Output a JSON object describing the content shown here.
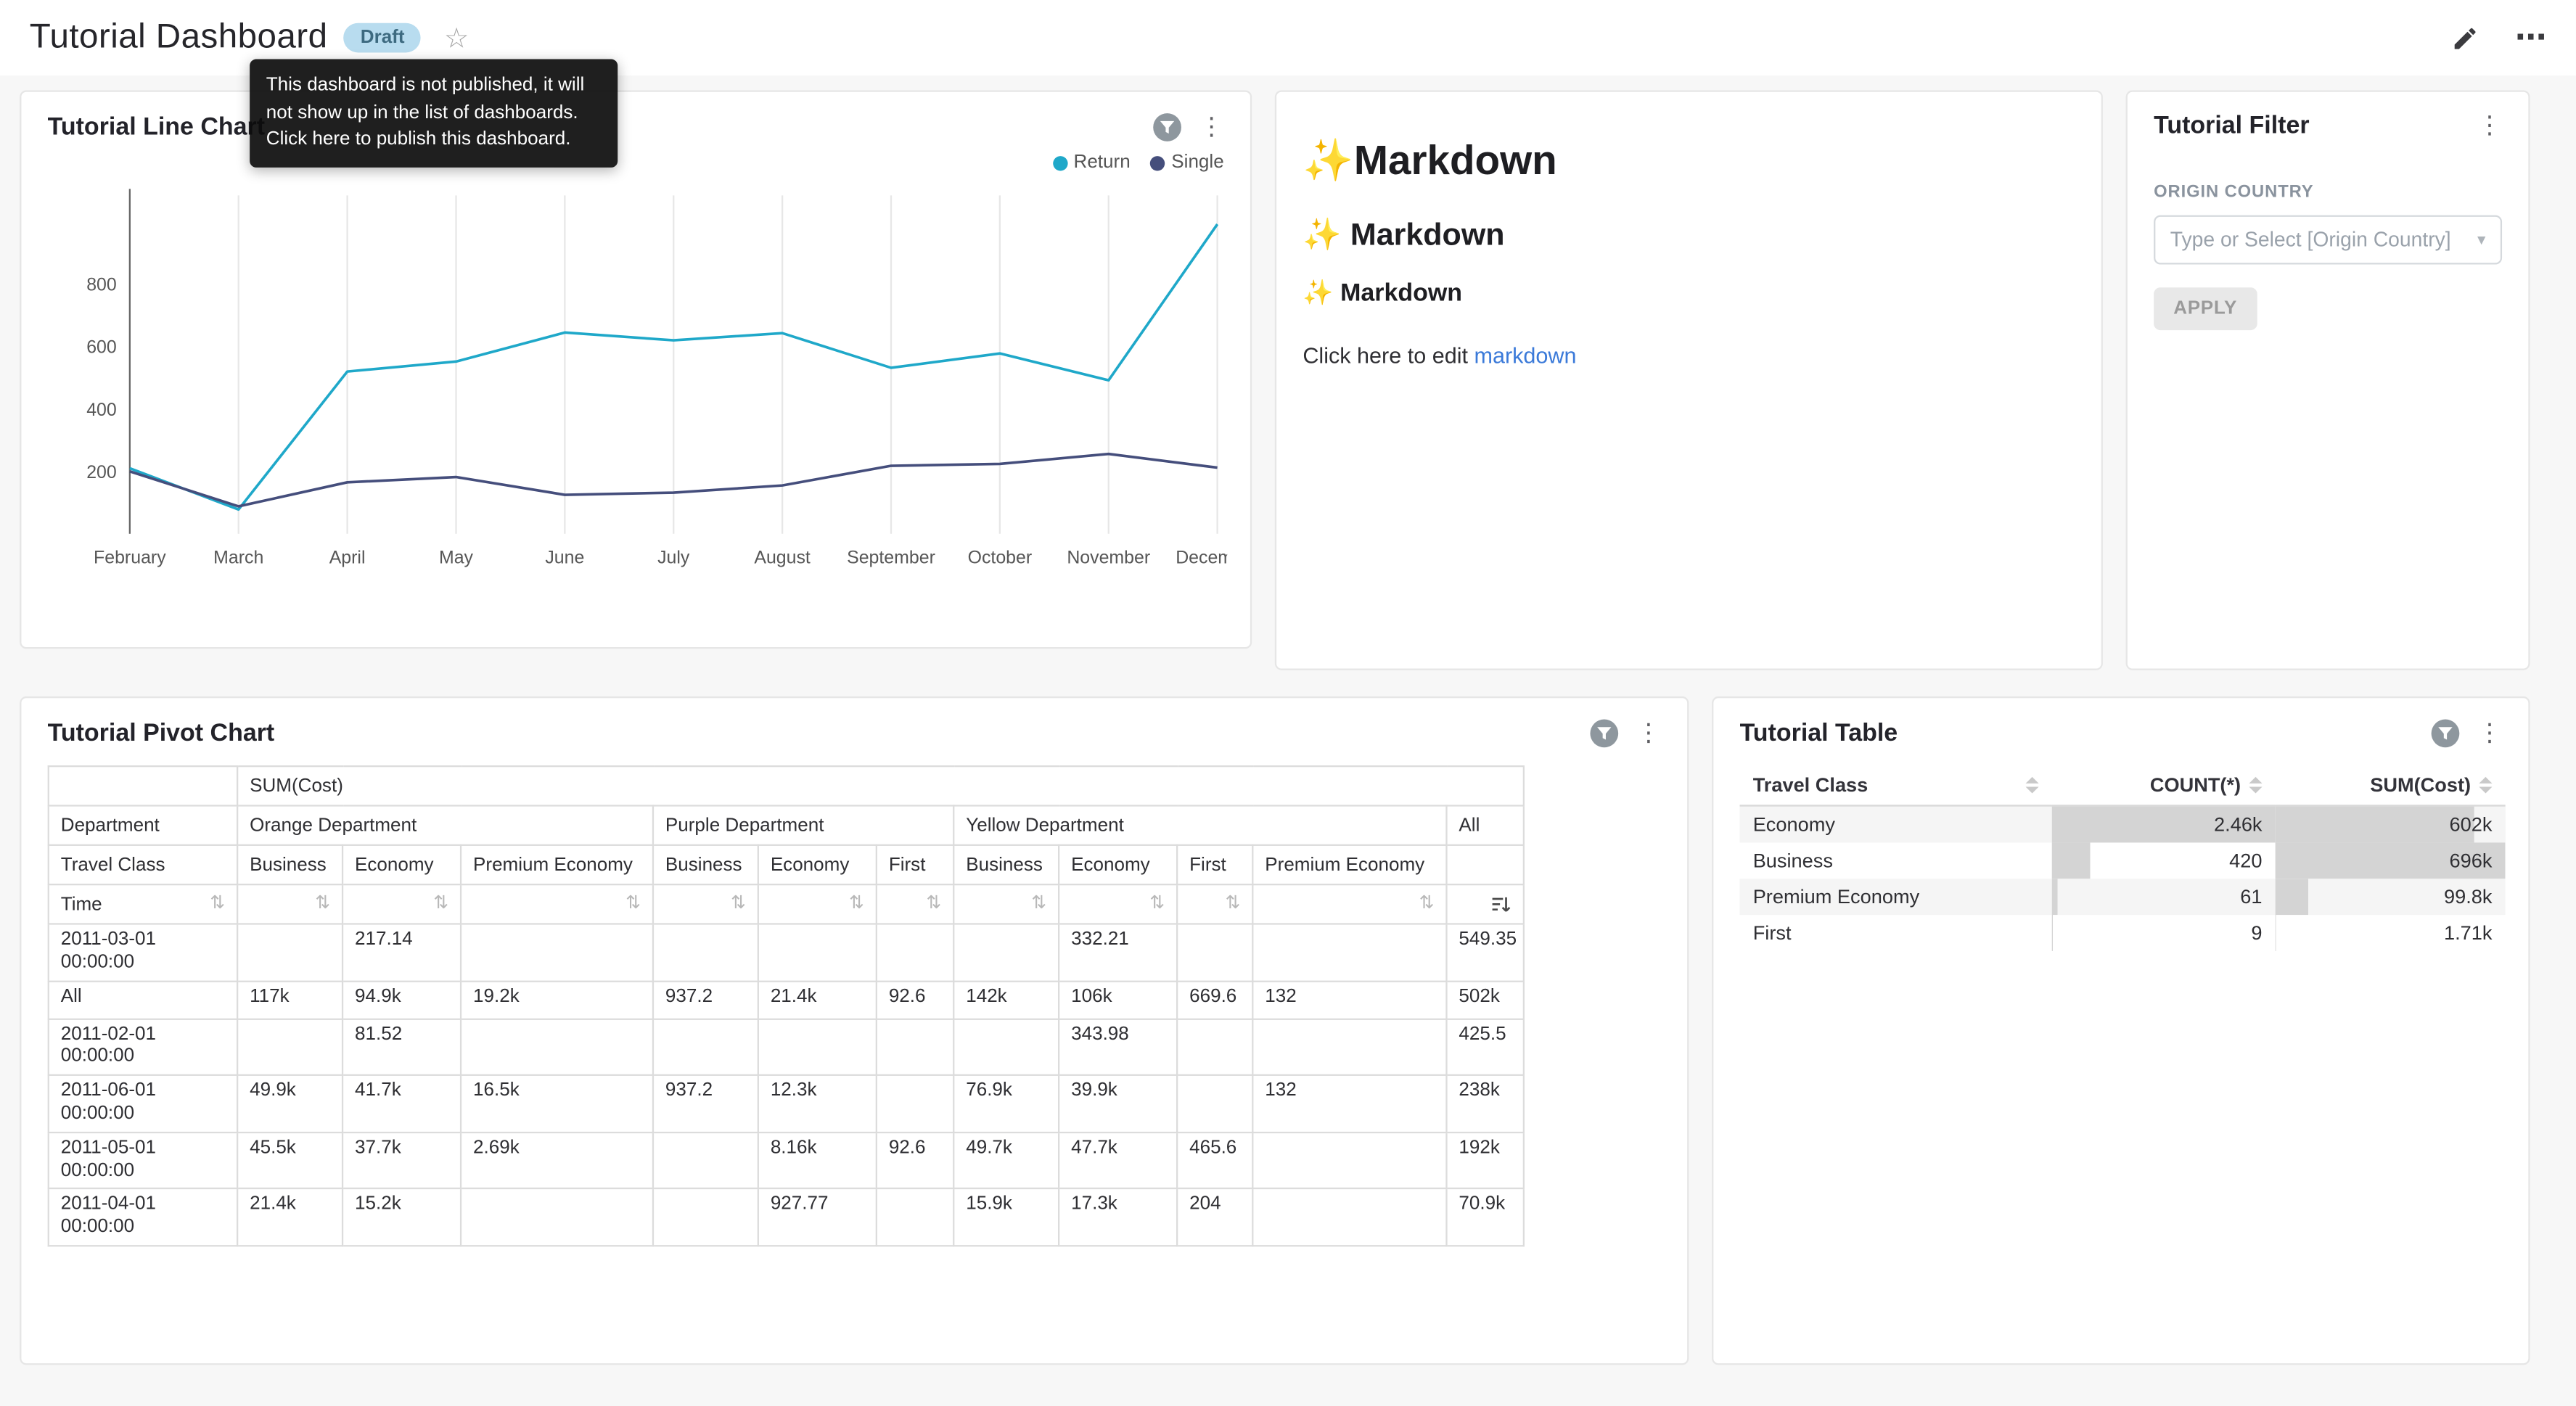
{
  "header": {
    "title": "Tutorial Dashboard",
    "badge": "Draft",
    "tooltip": "This dashboard is not published, it will not show up in the list of dashboards. Click here to publish this dashboard."
  },
  "icons": {
    "star": "☆",
    "kebab": "⋮",
    "ellipsis": "⋯",
    "sort_both": "⇅",
    "caret_down": "▾"
  },
  "colors": {
    "page_bg": "#f7f7f7",
    "series_return": "#1FA8C9",
    "series_single": "#454E7C",
    "badge_bg": "#b8dcef",
    "badge_text": "#3d6a80",
    "link": "#3b7ad9",
    "table_bar": "#d4d4d4"
  },
  "markdown": {
    "h1": "✨Markdown",
    "h2": "✨ Markdown",
    "h3": "✨ Markdown",
    "edit_prefix": "Click here to edit ",
    "edit_link": "markdown"
  },
  "filter": {
    "title": "Tutorial Filter",
    "field_label": "ORIGIN COUNTRY",
    "placeholder": "Type or Select [Origin Country]",
    "apply_label": "APPLY"
  },
  "chart_data": [
    {
      "type": "line",
      "title": "Tutorial Line Chart",
      "x": [
        "February",
        "March",
        "April",
        "May",
        "June",
        "July",
        "August",
        "September",
        "October",
        "November",
        "December"
      ],
      "series": [
        {
          "name": "Return",
          "color": "#1FA8C9",
          "values": [
            210,
            78,
            520,
            552,
            645,
            620,
            643,
            532,
            578,
            492,
            992
          ]
        },
        {
          "name": "Single",
          "color": "#454E7C",
          "values": [
            200,
            88,
            165,
            182,
            125,
            132,
            155,
            218,
            224,
            256,
            212
          ]
        }
      ],
      "ylim": [
        0,
        1000
      ],
      "yticks": [
        200,
        400,
        600,
        800
      ],
      "legend_position": "top-right",
      "grid": "vertical"
    },
    {
      "type": "table",
      "title": "Tutorial Pivot Chart",
      "metric_header": "SUM(Cost)",
      "row_dim": "Department",
      "col_dim": "Travel Class",
      "time_label": "Time",
      "sorted_column_index": 10,
      "groups": [
        {
          "name": "Orange Department",
          "cols": [
            "Business",
            "Economy",
            "Premium Economy"
          ]
        },
        {
          "name": "Purple Department",
          "cols": [
            "Business",
            "Economy",
            "First"
          ]
        },
        {
          "name": "Yellow Department",
          "cols": [
            "Business",
            "Economy",
            "First",
            "Premium Economy"
          ]
        },
        {
          "name": "All",
          "cols": [
            ""
          ]
        }
      ],
      "rows": [
        {
          "label": "2011-03-01 00:00:00",
          "values": [
            "",
            "217.14",
            "",
            "",
            "",
            "",
            "",
            "332.21",
            "",
            "",
            "549.35"
          ]
        },
        {
          "label": "All",
          "values": [
            "117k",
            "94.9k",
            "19.2k",
            "937.2",
            "21.4k",
            "92.6",
            "142k",
            "106k",
            "669.6",
            "132",
            "502k"
          ]
        },
        {
          "label": "2011-02-01 00:00:00",
          "values": [
            "",
            "81.52",
            "",
            "",
            "",
            "",
            "",
            "343.98",
            "",
            "",
            "425.5"
          ]
        },
        {
          "label": "2011-06-01 00:00:00",
          "values": [
            "49.9k",
            "41.7k",
            "16.5k",
            "937.2",
            "12.3k",
            "",
            "76.9k",
            "39.9k",
            "",
            "132",
            "238k"
          ]
        },
        {
          "label": "2011-05-01 00:00:00",
          "values": [
            "45.5k",
            "37.7k",
            "2.69k",
            "",
            "8.16k",
            "92.6",
            "49.7k",
            "47.7k",
            "465.6",
            "",
            "192k"
          ]
        },
        {
          "label": "2011-04-01 00:00:00",
          "values": [
            "21.4k",
            "15.2k",
            "",
            "",
            "927.77",
            "",
            "15.9k",
            "17.3k",
            "204",
            "",
            "70.9k"
          ]
        }
      ]
    },
    {
      "type": "table",
      "title": "Tutorial Table",
      "columns": [
        "Travel Class",
        "COUNT(*)",
        "SUM(Cost)"
      ],
      "rows": [
        {
          "cells": [
            "Economy",
            "2.46k",
            "602k"
          ],
          "count_frac": 1.0,
          "sum_frac": 0.865
        },
        {
          "cells": [
            "Business",
            "420",
            "696k"
          ],
          "count_frac": 0.171,
          "sum_frac": 1.0
        },
        {
          "cells": [
            "Premium Economy",
            "61",
            "99.8k"
          ],
          "count_frac": 0.025,
          "sum_frac": 0.143
        },
        {
          "cells": [
            "First",
            "9",
            "1.71k"
          ],
          "count_frac": 0.004,
          "sum_frac": 0.003
        }
      ]
    }
  ]
}
